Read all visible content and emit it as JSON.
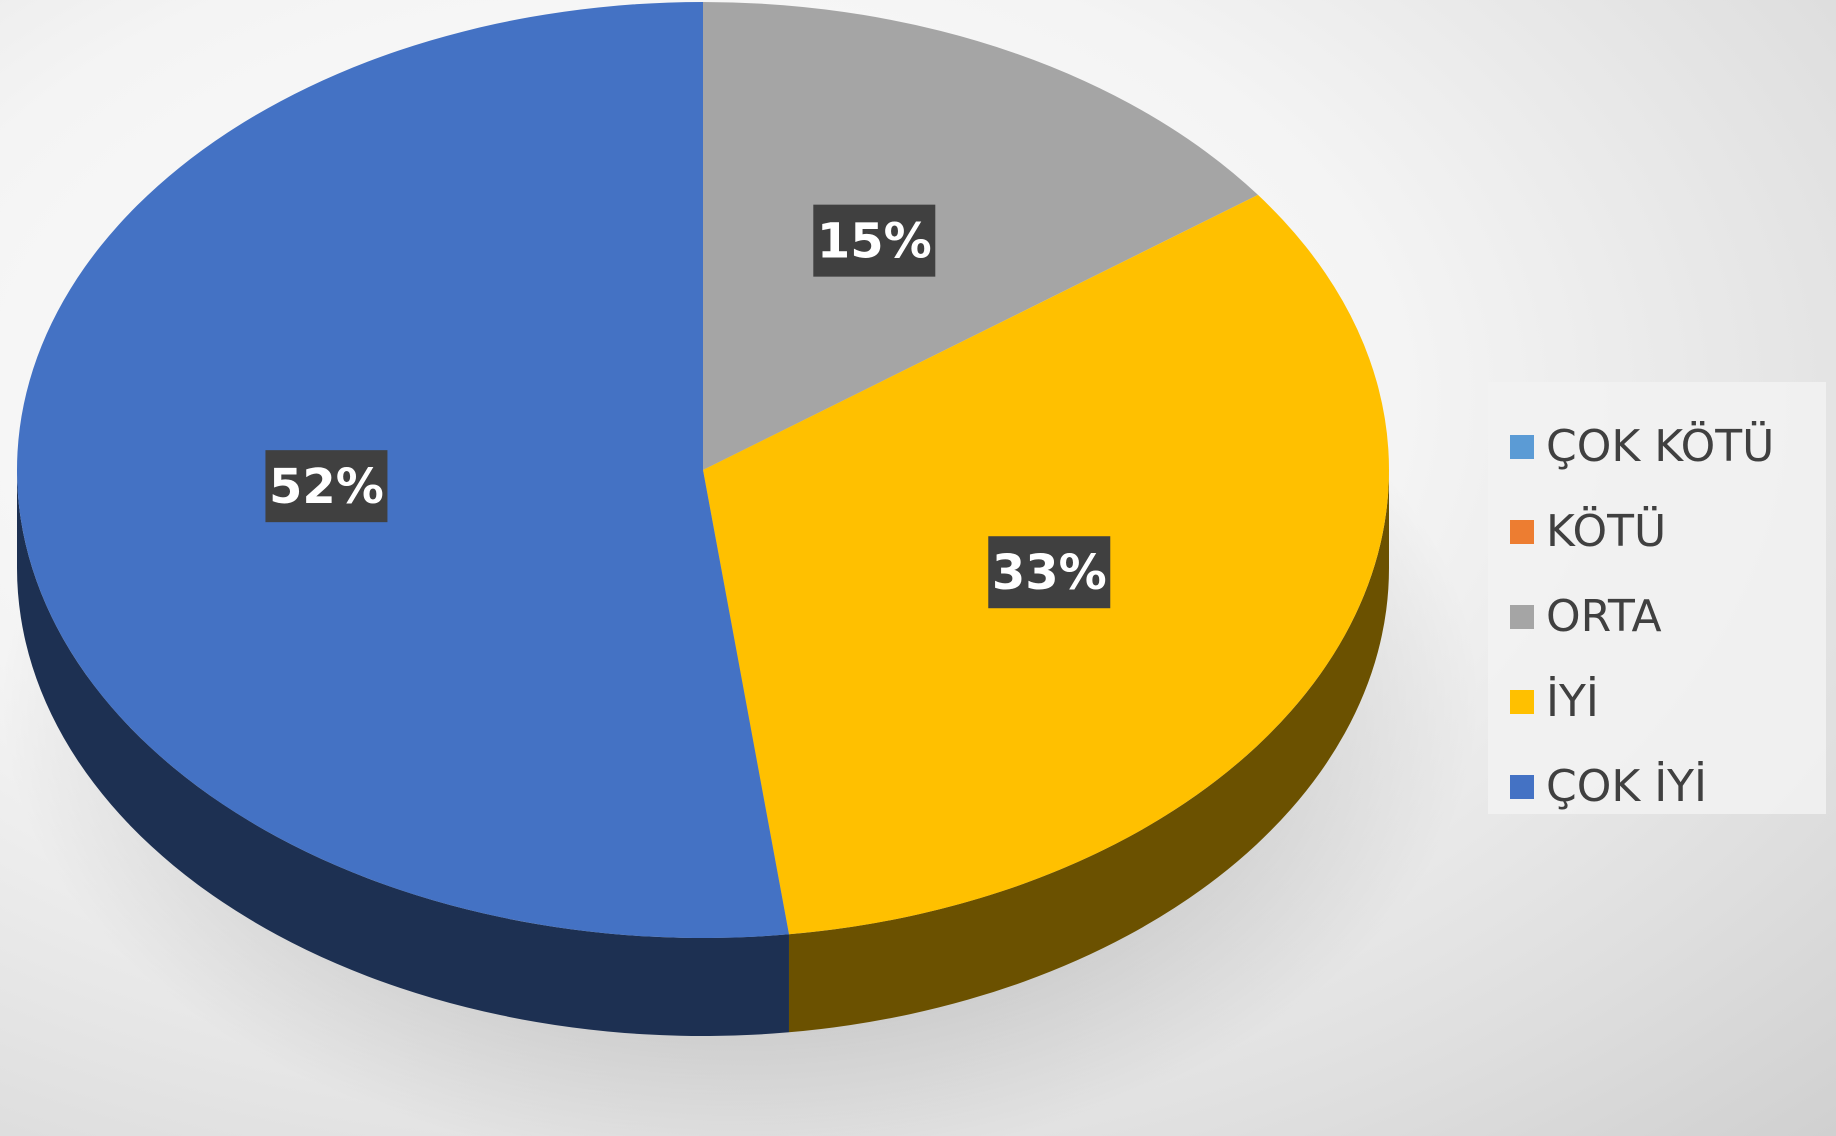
{
  "chart_data": {
    "type": "pie",
    "categories": [
      "ÇOK KÖTÜ",
      "KÖTÜ",
      "ORTA",
      "İYİ",
      "ÇOK İYİ"
    ],
    "values": [
      0,
      0,
      15,
      33,
      52
    ],
    "value_labels": [
      "",
      "",
      "15%",
      "33%",
      "52%"
    ],
    "colors": [
      "#5b9bd5",
      "#ed7d31",
      "#a5a5a5",
      "#ffc000",
      "#4472c4"
    ],
    "legend_position": "right",
    "style": "3d"
  }
}
